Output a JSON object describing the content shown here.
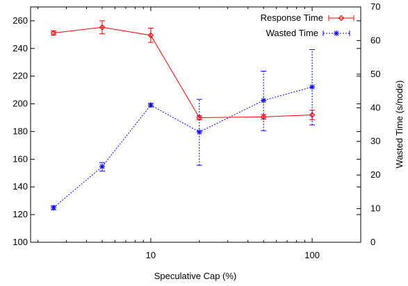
{
  "chart_data": {
    "type": "line",
    "title": "",
    "xlabel": "Speculative Cap (%)",
    "ylabel_left": "",
    "ylabel_right": "Wasted Time (s/node)",
    "x_scale": "log",
    "xlim": [
      1.8,
      200
    ],
    "x_ticks": [
      10,
      100
    ],
    "x_tick_labels": [
      "10",
      "100"
    ],
    "ylim_left": [
      100,
      270
    ],
    "y_ticks_left": [
      100,
      120,
      140,
      160,
      180,
      200,
      220,
      240,
      260
    ],
    "y_tick_labels_left": [
      "100",
      "120",
      "140",
      "160",
      "180",
      "200",
      "220",
      "240",
      "260"
    ],
    "ylim_right": [
      0,
      70
    ],
    "y_ticks_right": [
      0,
      10,
      20,
      30,
      40,
      50,
      60,
      70
    ],
    "y_tick_labels_right": [
      "0",
      "10",
      "20",
      "30",
      "40",
      "50",
      "60",
      "70"
    ],
    "grid": false,
    "legend_position": "top-right",
    "series": [
      {
        "name": "Response Time",
        "axis": "left",
        "color": "#ff0000",
        "line_style": "solid",
        "marker": "diamond",
        "x": [
          2.5,
          5,
          10,
          20,
          50,
          100
        ],
        "y": [
          251.2,
          255.3,
          249.5,
          190.0,
          190.6,
          192.0
        ],
        "err_low": [
          249.7,
          250.6,
          244.4,
          188.6,
          188.9,
          188.6
        ],
        "err_high": [
          252.7,
          260.0,
          254.7,
          191.4,
          192.3,
          195.4
        ]
      },
      {
        "name": "Wasted Time",
        "axis": "right",
        "color": "#0000ff",
        "line_style": "dotted",
        "marker": "asterisk",
        "x": [
          2.5,
          5,
          10,
          20,
          50,
          100
        ],
        "y": [
          10.3,
          22.5,
          40.8,
          32.8,
          42.2,
          46.2
        ],
        "err_low": [
          9.7,
          21.2,
          40.3,
          22.9,
          33.2,
          34.9
        ],
        "err_high": [
          10.8,
          23.7,
          41.3,
          42.5,
          50.9,
          57.3
        ]
      }
    ]
  }
}
